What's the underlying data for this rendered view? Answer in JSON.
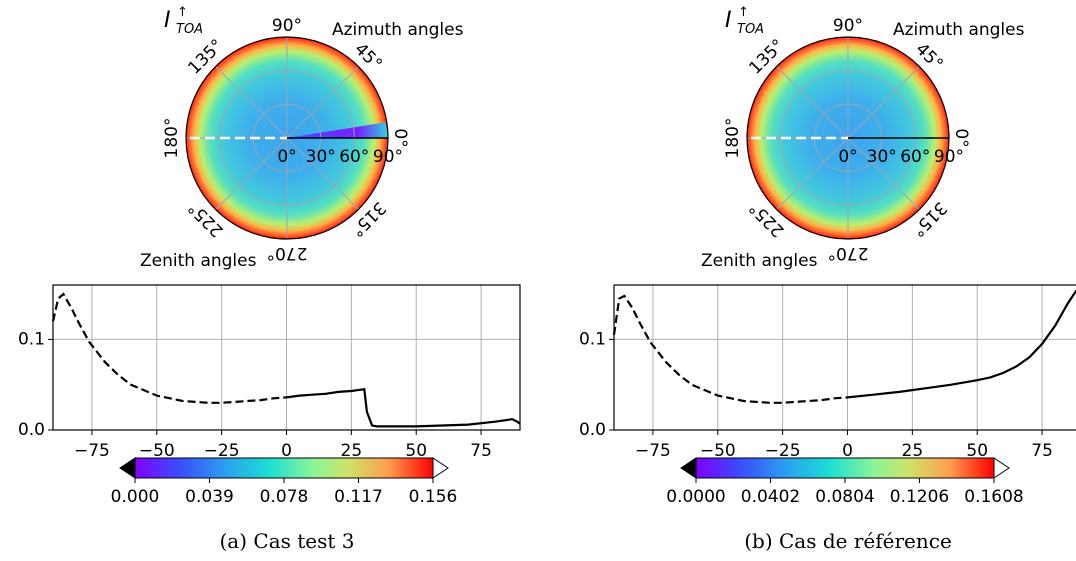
{
  "chart_data": [
    {
      "type": "polar_heatmap",
      "panel": "a",
      "caption": "(a) Cas test 3",
      "quantity_label": {
        "base": "I",
        "sub": "TOA",
        "sup": "↑"
      },
      "azimuth_axis_label": "Azimuth angles",
      "zenith_axis_label": "Zenith angles",
      "azimuth_ticks": [
        "0°",
        "45°",
        "90°",
        "135°",
        "180°",
        "225°",
        "270°",
        "315°"
      ],
      "zenith_ticks": [
        "0°",
        "30°",
        "60°",
        "90°"
      ],
      "highlight_sector_azimuth_deg": [
        0,
        13
      ],
      "profile": {
        "type": "line",
        "x_ticks": [
          "−75",
          "−50",
          "−25",
          "0",
          "25",
          "50",
          "75"
        ],
        "y_ticks": [
          "0.0",
          "0.1"
        ],
        "xlim": [
          -90,
          90
        ],
        "ylim": [
          0,
          0.16
        ],
        "dashed_series": {
          "x": [
            -90,
            -88,
            -86,
            -83,
            -80,
            -76,
            -70,
            -65,
            -60,
            -50,
            -40,
            -30,
            -25,
            -20,
            -10,
            -5,
            0
          ],
          "y": [
            0.12,
            0.145,
            0.15,
            0.135,
            0.118,
            0.097,
            0.075,
            0.061,
            0.05,
            0.038,
            0.032,
            0.03,
            0.03,
            0.031,
            0.033,
            0.035,
            0.036
          ]
        },
        "solid_series": {
          "x": [
            0,
            5,
            10,
            15,
            20,
            25,
            30,
            31,
            33,
            35,
            40,
            50,
            60,
            70,
            80,
            85,
            87,
            89,
            90
          ],
          "y": [
            0.036,
            0.038,
            0.039,
            0.04,
            0.042,
            0.043,
            0.045,
            0.02,
            0.005,
            0.004,
            0.004,
            0.004,
            0.005,
            0.006,
            0.009,
            0.011,
            0.012,
            0.009,
            0.007
          ]
        }
      },
      "colorbar": {
        "ticks": [
          "0.000",
          "0.039",
          "0.078",
          "0.117",
          "0.156"
        ],
        "range": [
          0,
          0.156
        ],
        "colormap": "rainbow",
        "extend": "both"
      }
    },
    {
      "type": "polar_heatmap",
      "panel": "b",
      "caption": "(b) Cas de référence",
      "quantity_label": {
        "base": "I",
        "sub": "TOA",
        "sup": "↑"
      },
      "azimuth_axis_label": "Azimuth angles",
      "zenith_axis_label": "Zenith angles",
      "azimuth_ticks": [
        "0°",
        "45°",
        "90°",
        "135°",
        "180°",
        "225°",
        "270°",
        "315°"
      ],
      "zenith_ticks": [
        "0°",
        "30°",
        "60°",
        "90°"
      ],
      "highlight_sector_azimuth_deg": null,
      "profile": {
        "type": "line",
        "x_ticks": [
          "−75",
          "−50",
          "−25",
          "0",
          "25",
          "50",
          "75"
        ],
        "y_ticks": [
          "0.0",
          "0.1"
        ],
        "xlim": [
          -90,
          90
        ],
        "ylim": [
          0,
          0.16
        ],
        "dashed_series": {
          "x": [
            -90,
            -88,
            -86,
            -83,
            -80,
            -76,
            -70,
            -65,
            -60,
            -50,
            -40,
            -30,
            -25,
            -20,
            -10,
            -5,
            0
          ],
          "y": [
            0.105,
            0.145,
            0.148,
            0.135,
            0.118,
            0.097,
            0.075,
            0.061,
            0.05,
            0.038,
            0.032,
            0.03,
            0.03,
            0.031,
            0.033,
            0.035,
            0.036
          ]
        },
        "solid_series": {
          "x": [
            0,
            10,
            20,
            30,
            40,
            50,
            55,
            60,
            65,
            70,
            75,
            80,
            85,
            88,
            90
          ],
          "y": [
            0.036,
            0.039,
            0.042,
            0.046,
            0.05,
            0.055,
            0.058,
            0.063,
            0.07,
            0.08,
            0.095,
            0.115,
            0.14,
            0.153,
            0.157
          ]
        }
      },
      "colorbar": {
        "ticks": [
          "0.0000",
          "0.0402",
          "0.0804",
          "0.1206",
          "0.1608"
        ],
        "range": [
          0,
          0.1608
        ],
        "colormap": "rainbow",
        "extend": "both"
      }
    }
  ]
}
